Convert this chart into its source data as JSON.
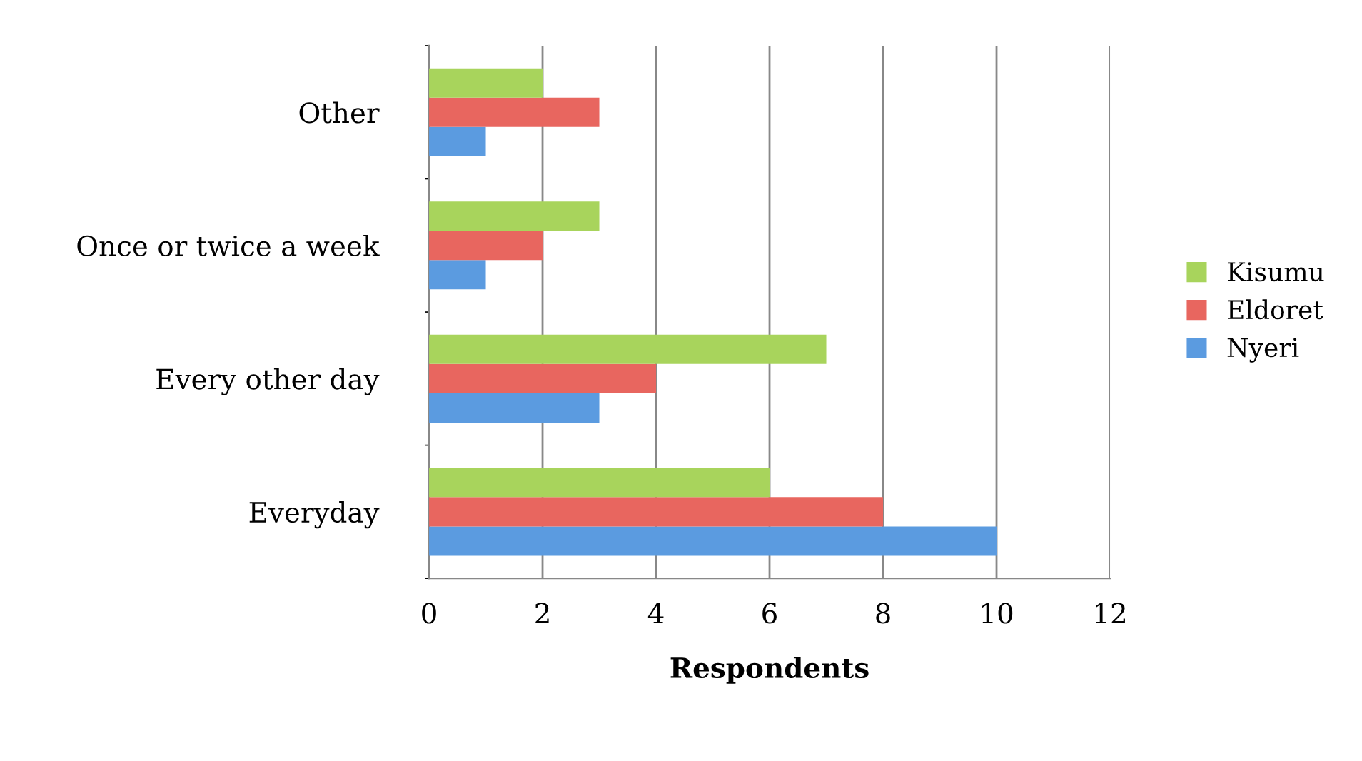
{
  "chart_data": {
    "type": "bar",
    "orientation": "horizontal",
    "xlabel": "Respondents",
    "categories": [
      "Other",
      "Once or twice a week",
      "Every other day",
      "Everyday"
    ],
    "series": [
      {
        "name": "Nyeri",
        "color": "#5b9be0",
        "values": [
          1,
          1,
          3,
          10
        ]
      },
      {
        "name": "Eldoret",
        "color": "#e8665f",
        "values": [
          3,
          2,
          4,
          8
        ]
      },
      {
        "name": "Kisumu",
        "color": "#a8d45c",
        "values": [
          2,
          3,
          7,
          6
        ]
      }
    ],
    "xlim": [
      0,
      12
    ],
    "xticks": [
      0,
      2,
      4,
      6,
      8,
      10,
      12
    ],
    "grid": "x",
    "legend": "right"
  }
}
